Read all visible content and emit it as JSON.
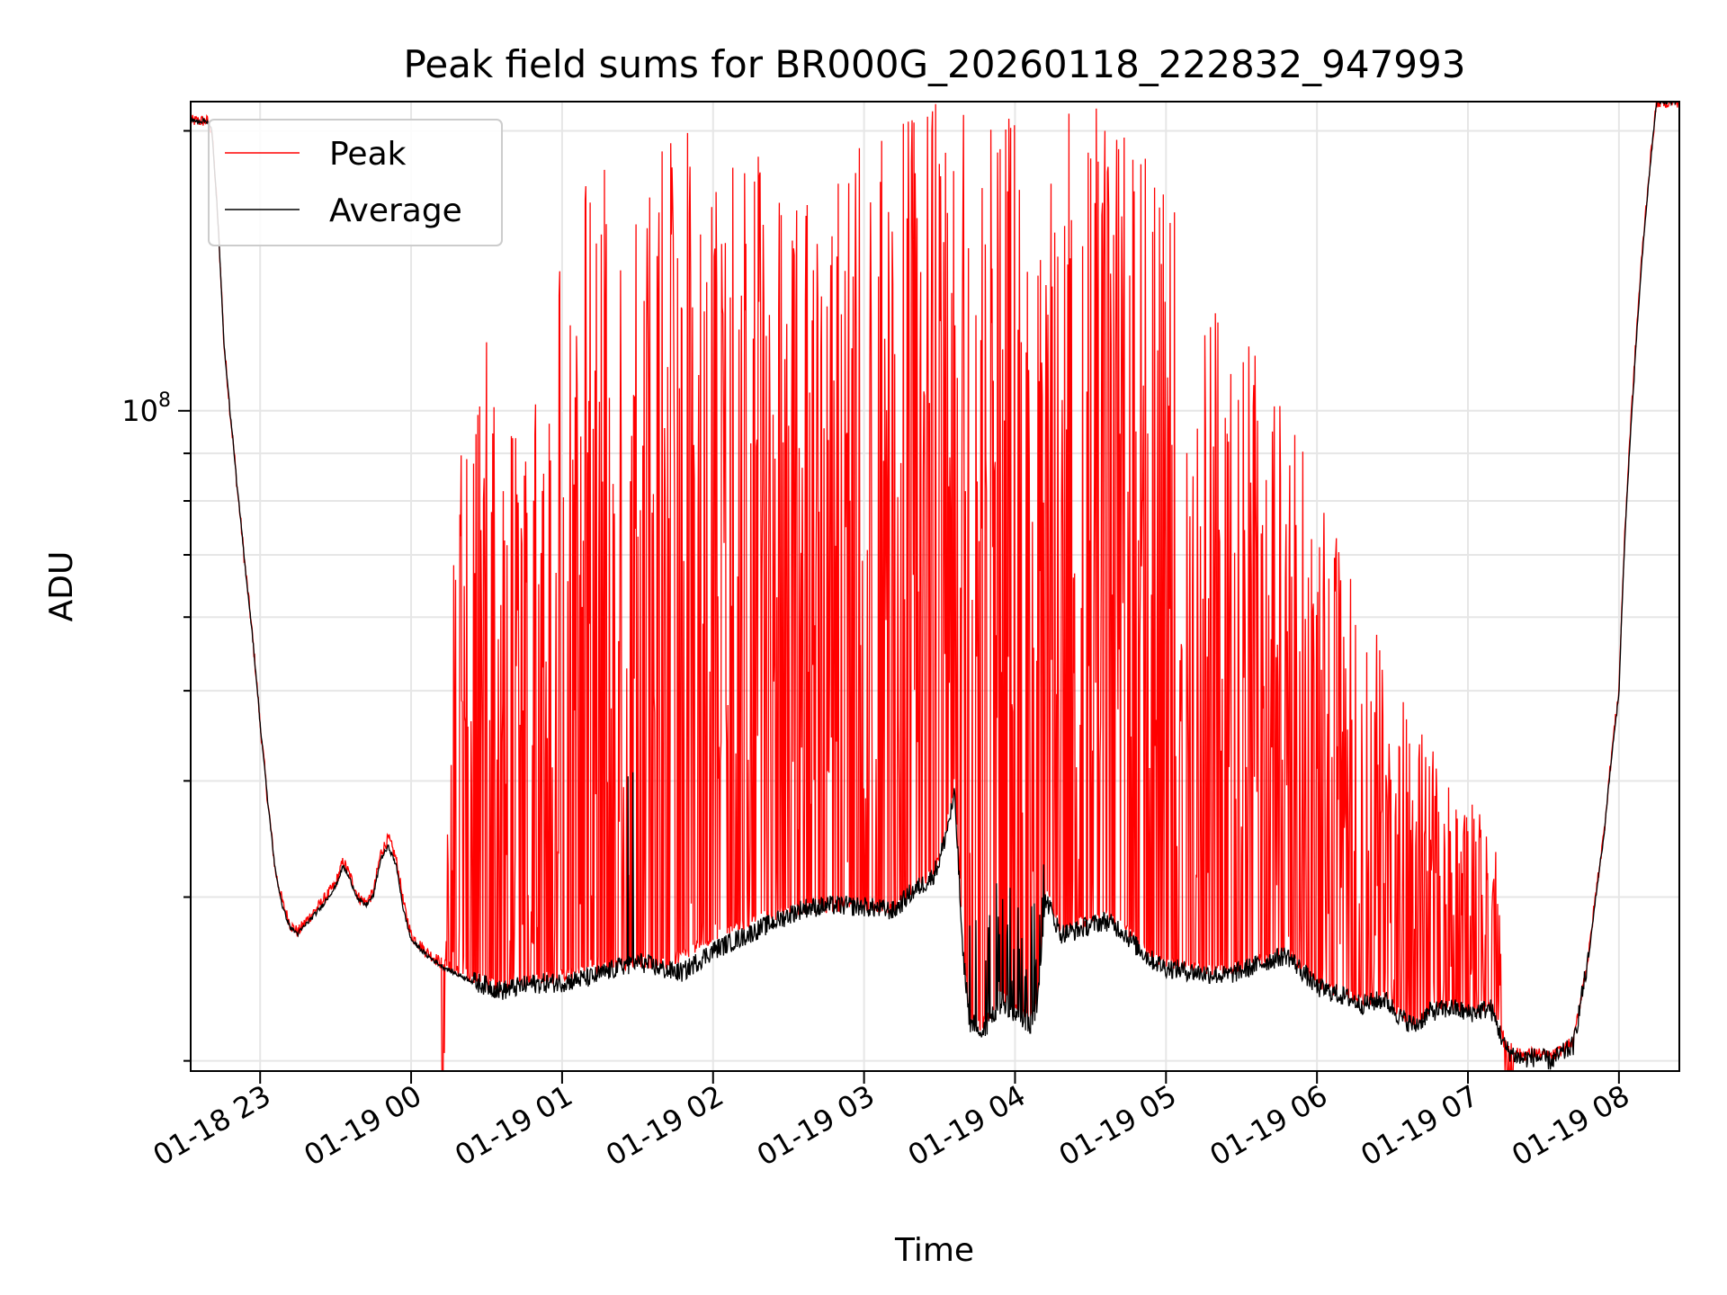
{
  "chart_data": {
    "type": "line",
    "title": "Peak field sums for BR000G_20260118_222832_947993",
    "xlabel": "Time",
    "ylabel": "ADU",
    "yscale": "log",
    "ylim": [
      19500000,
      215000000
    ],
    "xlim_hours": [
      22.54,
      32.4
    ],
    "x_start_label": "01-18 22:32",
    "grid": true,
    "legend_position": "upper-left",
    "x_ticks": [
      {
        "label": "01-18 23",
        "hour": 23
      },
      {
        "label": "01-19 00",
        "hour": 24
      },
      {
        "label": "01-19 01",
        "hour": 25
      },
      {
        "label": "01-19 02",
        "hour": 26
      },
      {
        "label": "01-19 03",
        "hour": 27
      },
      {
        "label": "01-19 04",
        "hour": 28
      },
      {
        "label": "01-19 05",
        "hour": 29
      },
      {
        "label": "01-19 06",
        "hour": 30
      },
      {
        "label": "01-19 07",
        "hour": 31
      },
      {
        "label": "01-19 08",
        "hour": 32
      }
    ],
    "y_major_ticks": [
      {
        "label_base": "10",
        "label_exp": "8",
        "value": 100000000
      }
    ],
    "y_minor_ticks": [
      20000000,
      30000000,
      40000000,
      50000000,
      60000000,
      70000000,
      80000000,
      90000000,
      200000000
    ],
    "series": [
      {
        "name": "Peak",
        "color": "#ff0000",
        "baseline": [
          [
            22.54,
            205000000
          ],
          [
            22.65,
            205000000
          ],
          [
            22.68,
            200000000
          ],
          [
            22.72,
            160000000
          ],
          [
            22.76,
            118000000
          ],
          [
            22.8,
            100000000
          ],
          [
            22.85,
            82000000
          ],
          [
            22.9,
            68000000
          ],
          [
            22.95,
            57000000
          ],
          [
            23.0,
            46000000
          ],
          [
            23.05,
            38000000
          ],
          [
            23.1,
            32000000
          ],
          [
            23.15,
            29500000
          ],
          [
            23.2,
            28000000
          ],
          [
            23.25,
            27500000
          ],
          [
            23.3,
            28200000
          ],
          [
            23.4,
            29500000
          ],
          [
            23.5,
            31000000
          ],
          [
            23.55,
            32800000
          ],
          [
            23.6,
            31500000
          ],
          [
            23.65,
            30000000
          ],
          [
            23.7,
            29600000
          ],
          [
            23.75,
            30300000
          ],
          [
            23.8,
            33500000
          ],
          [
            23.85,
            34700000
          ],
          [
            23.9,
            33000000
          ],
          [
            23.95,
            29500000
          ],
          [
            24.0,
            27300000
          ],
          [
            24.1,
            26200000
          ],
          [
            24.2,
            25500000
          ],
          [
            24.3,
            25000000
          ],
          [
            24.4,
            24600000
          ],
          [
            24.5,
            24300000
          ],
          [
            24.6,
            24000000
          ],
          [
            24.7,
            24200000
          ],
          [
            24.8,
            24500000
          ],
          [
            25.0,
            24700000
          ],
          [
            25.3,
            25200000
          ],
          [
            25.5,
            25600000
          ],
          [
            25.7,
            25400000
          ],
          [
            26.0,
            27200000
          ],
          [
            26.3,
            28500000
          ],
          [
            26.6,
            29200000
          ],
          [
            27.0,
            29400000
          ],
          [
            27.2,
            29200000
          ],
          [
            27.3,
            30500000
          ],
          [
            27.45,
            31800000
          ],
          [
            27.5,
            33000000
          ],
          [
            27.55,
            36000000
          ],
          [
            27.6,
            40000000
          ],
          [
            27.65,
            27000000
          ],
          [
            27.7,
            22500000
          ],
          [
            27.75,
            21800000
          ],
          [
            27.8,
            22000000
          ],
          [
            27.9,
            23500000
          ],
          [
            28.0,
            23000000
          ],
          [
            28.1,
            22200000
          ],
          [
            28.15,
            23500000
          ],
          [
            28.2,
            30500000
          ],
          [
            28.3,
            27800000
          ],
          [
            28.4,
            28000000
          ],
          [
            28.5,
            28500000
          ],
          [
            28.6,
            28800000
          ],
          [
            28.7,
            28200000
          ],
          [
            28.8,
            27000000
          ],
          [
            28.9,
            26000000
          ],
          [
            29.0,
            25500000
          ],
          [
            29.2,
            25200000
          ],
          [
            29.4,
            25000000
          ],
          [
            29.5,
            25300000
          ],
          [
            29.7,
            26000000
          ],
          [
            29.8,
            26300000
          ],
          [
            29.9,
            25300000
          ],
          [
            30.0,
            24200000
          ],
          [
            30.2,
            23600000
          ],
          [
            30.3,
            23200000
          ],
          [
            30.45,
            23500000
          ],
          [
            30.55,
            22500000
          ],
          [
            30.65,
            22000000
          ],
          [
            30.75,
            22800000
          ],
          [
            30.9,
            23000000
          ],
          [
            31.0,
            22700000
          ],
          [
            31.15,
            23000000
          ],
          [
            31.25,
            20800000
          ],
          [
            31.35,
            20300000
          ],
          [
            31.45,
            20400000
          ],
          [
            31.55,
            20200000
          ],
          [
            31.65,
            20700000
          ],
          [
            31.7,
            21000000
          ],
          [
            31.8,
            26000000
          ],
          [
            31.9,
            35000000
          ],
          [
            32.0,
            50000000
          ],
          [
            32.1,
            110000000
          ],
          [
            32.2,
            180000000
          ],
          [
            32.25,
            215000000
          ],
          [
            32.4,
            215000000
          ]
        ],
        "spike_envelope": [
          [
            22.54,
            0
          ],
          [
            24.2,
            0
          ],
          [
            24.3,
            90000000
          ],
          [
            24.5,
            120000000
          ],
          [
            24.6,
            85000000
          ],
          [
            24.8,
            140000000
          ],
          [
            25.0,
            165000000
          ],
          [
            25.2,
            195000000
          ],
          [
            25.5,
            175000000
          ],
          [
            25.8,
            205000000
          ],
          [
            26.0,
            175000000
          ],
          [
            26.3,
            195000000
          ],
          [
            26.6,
            165000000
          ],
          [
            27.0,
            200000000
          ],
          [
            27.3,
            215000000
          ],
          [
            27.6,
            215000000
          ],
          [
            28.0,
            215000000
          ],
          [
            28.3,
            215000000
          ],
          [
            28.6,
            215000000
          ],
          [
            28.9,
            195000000
          ],
          [
            29.2,
            145000000
          ],
          [
            29.5,
            125000000
          ],
          [
            29.8,
            100000000
          ],
          [
            30.1,
            75000000
          ],
          [
            30.4,
            58000000
          ],
          [
            30.7,
            45000000
          ],
          [
            31.0,
            40000000
          ],
          [
            31.2,
            33000000
          ],
          [
            31.3,
            0
          ],
          [
            32.4,
            0
          ]
        ]
      },
      {
        "name": "Average",
        "color": "#000000",
        "values": [
          [
            22.54,
            205000000
          ],
          [
            22.65,
            205000000
          ],
          [
            22.68,
            200000000
          ],
          [
            22.72,
            160000000
          ],
          [
            22.76,
            118000000
          ],
          [
            22.8,
            100000000
          ],
          [
            22.85,
            82000000
          ],
          [
            22.9,
            68000000
          ],
          [
            22.95,
            57000000
          ],
          [
            23.0,
            46000000
          ],
          [
            23.05,
            38000000
          ],
          [
            23.1,
            32000000
          ],
          [
            23.15,
            29200000
          ],
          [
            23.2,
            27800000
          ],
          [
            23.25,
            27400000
          ],
          [
            23.3,
            28000000
          ],
          [
            23.4,
            29200000
          ],
          [
            23.5,
            30800000
          ],
          [
            23.55,
            32400000
          ],
          [
            23.6,
            31200000
          ],
          [
            23.65,
            29800000
          ],
          [
            23.7,
            29400000
          ],
          [
            23.75,
            30100000
          ],
          [
            23.8,
            33000000
          ],
          [
            23.85,
            34000000
          ],
          [
            23.9,
            32500000
          ],
          [
            23.95,
            29000000
          ],
          [
            24.0,
            27000000
          ],
          [
            24.1,
            26000000
          ],
          [
            24.2,
            25300000
          ],
          [
            24.3,
            24800000
          ],
          [
            24.4,
            24400000
          ],
          [
            24.5,
            24100000
          ],
          [
            24.6,
            23800000
          ],
          [
            24.7,
            24000000
          ],
          [
            24.8,
            24200000
          ],
          [
            25.0,
            24300000
          ],
          [
            25.2,
            24600000
          ],
          [
            25.4,
            25300000
          ],
          [
            25.5,
            25600000
          ],
          [
            25.7,
            25000000
          ],
          [
            25.8,
            24900000
          ],
          [
            26.0,
            26300000
          ],
          [
            26.2,
            27200000
          ],
          [
            26.4,
            28200000
          ],
          [
            26.6,
            29200000
          ],
          [
            26.8,
            29400000
          ],
          [
            27.0,
            29300000
          ],
          [
            27.2,
            29000000
          ],
          [
            27.3,
            30200000
          ],
          [
            27.45,
            31500000
          ],
          [
            27.5,
            32800000
          ],
          [
            27.55,
            35500000
          ],
          [
            27.6,
            38500000
          ],
          [
            27.65,
            26500000
          ],
          [
            27.7,
            22000000
          ],
          [
            27.75,
            21300000
          ],
          [
            27.8,
            21600000
          ],
          [
            27.9,
            23000000
          ],
          [
            28.0,
            22500000
          ],
          [
            28.1,
            21800000
          ],
          [
            28.15,
            23000000
          ],
          [
            28.2,
            30000000
          ],
          [
            28.3,
            27400000
          ],
          [
            28.4,
            27600000
          ],
          [
            28.5,
            28000000
          ],
          [
            28.6,
            28300000
          ],
          [
            28.7,
            27700000
          ],
          [
            28.8,
            26600000
          ],
          [
            28.9,
            25700000
          ],
          [
            29.0,
            25200000
          ],
          [
            29.2,
            24900000
          ],
          [
            29.4,
            24700000
          ],
          [
            29.5,
            25000000
          ],
          [
            29.7,
            25700000
          ],
          [
            29.8,
            26000000
          ],
          [
            29.9,
            25000000
          ],
          [
            30.0,
            24000000
          ],
          [
            30.2,
            23400000
          ],
          [
            30.3,
            23000000
          ],
          [
            30.45,
            23300000
          ],
          [
            30.55,
            22300000
          ],
          [
            30.65,
            21800000
          ],
          [
            30.75,
            22600000
          ],
          [
            30.9,
            22800000
          ],
          [
            31.0,
            22500000
          ],
          [
            31.15,
            22800000
          ],
          [
            31.25,
            20600000
          ],
          [
            31.35,
            20100000
          ],
          [
            31.45,
            20200000
          ],
          [
            31.55,
            20000000
          ],
          [
            31.65,
            20500000
          ],
          [
            31.7,
            20800000
          ],
          [
            31.8,
            25800000
          ],
          [
            31.9,
            34800000
          ],
          [
            32.0,
            49500000
          ],
          [
            32.1,
            108000000
          ],
          [
            32.2,
            178000000
          ],
          [
            32.25,
            215000000
          ],
          [
            32.4,
            215000000
          ]
        ]
      }
    ]
  }
}
